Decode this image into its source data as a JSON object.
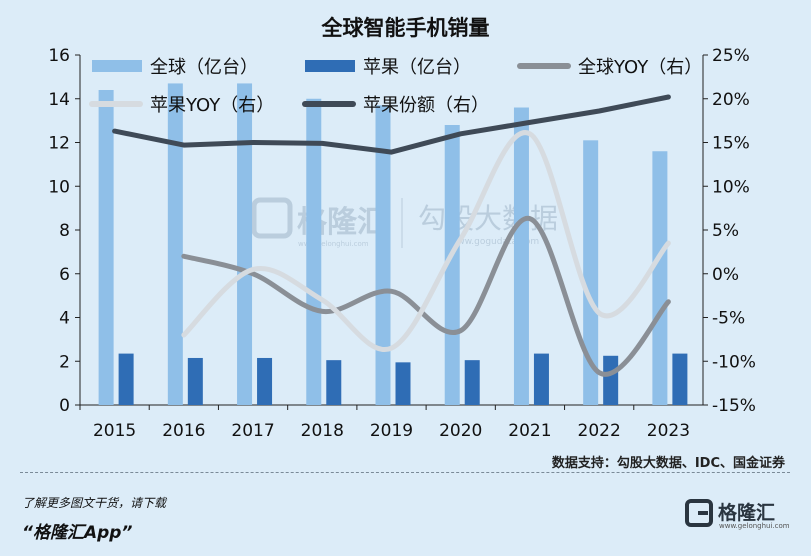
{
  "title": "全球智能手机销量",
  "chart_data": {
    "type": "bar",
    "title": "全球智能手机销量",
    "categories": [
      "2015",
      "2016",
      "2017",
      "2018",
      "2019",
      "2020",
      "2021",
      "2022",
      "2023"
    ],
    "left_axis": {
      "ylim": [
        0,
        16
      ],
      "ticks": [
        "0",
        "2",
        "4",
        "6",
        "8",
        "10",
        "12",
        "14",
        "16"
      ]
    },
    "right_axis": {
      "ylim": [
        -15,
        25
      ],
      "ticks": [
        "-15%",
        "-10%",
        "-5%",
        "0%",
        "5%",
        "10%",
        "15%",
        "20%",
        "25%"
      ]
    },
    "series": [
      {
        "name": "全球（亿台）",
        "type": "bar",
        "axis": "left",
        "color": "#8fbfe8",
        "values": [
          14.4,
          14.7,
          14.7,
          14.0,
          13.7,
          12.8,
          13.6,
          12.1,
          11.6
        ]
      },
      {
        "name": "苹果（亿台）",
        "type": "bar",
        "axis": "left",
        "color": "#2f6db5",
        "values": [
          2.35,
          2.15,
          2.15,
          2.05,
          1.95,
          2.05,
          2.35,
          2.25,
          2.35
        ]
      },
      {
        "name": "全球YOY（右）",
        "type": "line",
        "axis": "right",
        "color": "#8a8f96",
        "values": [
          null,
          2.0,
          0.0,
          -4.3,
          -2.0,
          -6.5,
          6.3,
          -11.3,
          -3.2
        ]
      },
      {
        "name": "苹果YOY（右）",
        "type": "line",
        "axis": "right",
        "color": "#d6dbe0",
        "values": [
          null,
          -7.0,
          0.5,
          -3.0,
          -8.5,
          4.0,
          16.0,
          -4.5,
          3.5
        ]
      },
      {
        "name": "苹果份额（右）",
        "type": "line",
        "axis": "right",
        "color": "#3f4a57",
        "values": [
          16.3,
          14.7,
          15.0,
          14.9,
          13.9,
          16.0,
          17.3,
          18.6,
          20.2
        ]
      }
    ],
    "legend_position": "top",
    "grid": false
  },
  "watermark": {
    "brand": "格隆汇",
    "brand_url": "www.gelonghui.com",
    "brand2": "勾股大数据",
    "brand2_url": "www.gogudata.com"
  },
  "source": "数据支持：勾股大数据、IDC、国金证券",
  "footer": {
    "download_text": "了解更多图文干货，请下载",
    "app_name": "“格隆汇App”",
    "logo_text": "格隆汇",
    "logo_url": "www.gelonghui.com"
  }
}
